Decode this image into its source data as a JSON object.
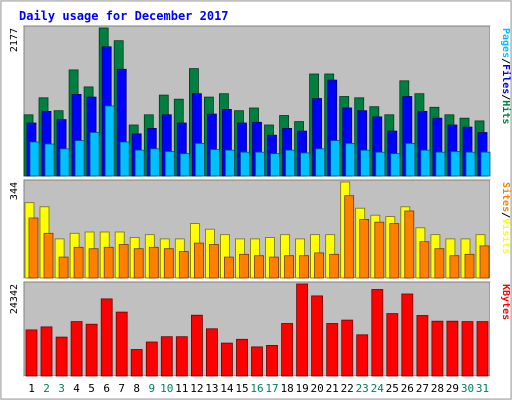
{
  "chart_data": {
    "title": "Daily usage for December 2017",
    "type": "bar",
    "categories": [
      "1",
      "2",
      "3",
      "4",
      "5",
      "6",
      "7",
      "8",
      "9",
      "10",
      "11",
      "12",
      "13",
      "14",
      "15",
      "16",
      "17",
      "18",
      "19",
      "20",
      "21",
      "22",
      "23",
      "24",
      "25",
      "26",
      "27",
      "28",
      "29",
      "30",
      "31"
    ],
    "weekend_days": [
      "2",
      "3",
      "9",
      "10",
      "16",
      "17",
      "23",
      "24",
      "30",
      "31"
    ],
    "panels": [
      {
        "id": "hits_files_pages",
        "y_max_label": "2177",
        "y_max": 2177,
        "right_label": [
          "Pages",
          "/",
          "Files",
          "/",
          "Hits"
        ],
        "series": [
          {
            "name": "Hits",
            "color": "#008040",
            "values": [
              900,
              1150,
              960,
              1560,
              1310,
              2177,
              1990,
              750,
              900,
              1190,
              1130,
              1580,
              1160,
              1210,
              960,
              1000,
              750,
              890,
              800,
              1500,
              1500,
              1170,
              1150,
              1020,
              900,
              1400,
              1210,
              1010,
              900,
              850,
              810
            ]
          },
          {
            "name": "Files",
            "color": "#0000ff",
            "values": [
              780,
              950,
              830,
              1200,
              1160,
              1900,
              1570,
              620,
              700,
              900,
              780,
              1210,
              910,
              980,
              780,
              790,
              600,
              700,
              660,
              1140,
              1410,
              1000,
              960,
              870,
              660,
              1170,
              950,
              850,
              750,
              720,
              640
            ]
          },
          {
            "name": "Pages",
            "color": "#00c0ff",
            "values": [
              500,
              470,
              400,
              520,
              640,
              1030,
              500,
              380,
              400,
              360,
              330,
              480,
              390,
              380,
              350,
              350,
              330,
              380,
              340,
              400,
              520,
              480,
              380,
              350,
              330,
              480,
              380,
              350,
              360,
              350,
              350
            ]
          }
        ]
      },
      {
        "id": "visits_sites",
        "y_max_label": "344",
        "y_max": 344,
        "right_label": [
          "Sites",
          "/",
          "Visits"
        ],
        "series": [
          {
            "name": "Visits",
            "color": "#ffff00",
            "values": [
              270,
              255,
              140,
              160,
              165,
              165,
              165,
              145,
              155,
              140,
              140,
              195,
              175,
              155,
              140,
              140,
              145,
              155,
              140,
              155,
              155,
              344,
              250,
              225,
              220,
              255,
              180,
              155,
              140,
              140,
              155
            ]
          },
          {
            "name": "Sites",
            "color": "#ff8000",
            "values": [
              215,
              160,
              75,
              110,
              105,
              110,
              120,
              105,
              110,
              105,
              95,
              125,
              120,
              75,
              85,
              80,
              75,
              80,
              80,
              90,
              85,
              295,
              210,
              200,
              195,
              240,
              130,
              105,
              80,
              85,
              115
            ]
          }
        ]
      },
      {
        "id": "kbytes",
        "y_max_label": "24342",
        "y_max": 24342,
        "right_label": [
          "KBytes"
        ],
        "series": [
          {
            "name": "KBytes",
            "color": "#ff0000",
            "values": [
              12200,
              13000,
              10300,
              14400,
              13700,
              20400,
              16900,
              7000,
              9000,
              10400,
              10400,
              16100,
              12500,
              8700,
              9700,
              7700,
              8100,
              13900,
              24342,
              21200,
              13900,
              14800,
              10900,
              22900,
              16500,
              21700,
              16000,
              14500,
              14500,
              14400,
              14400
            ]
          }
        ]
      }
    ],
    "colors": {
      "background": "#ffffff",
      "plot_background": "#c0c0c0",
      "title": "#0000ff",
      "weekday_label": "#000000",
      "weekend_label": "#00805c"
    }
  }
}
